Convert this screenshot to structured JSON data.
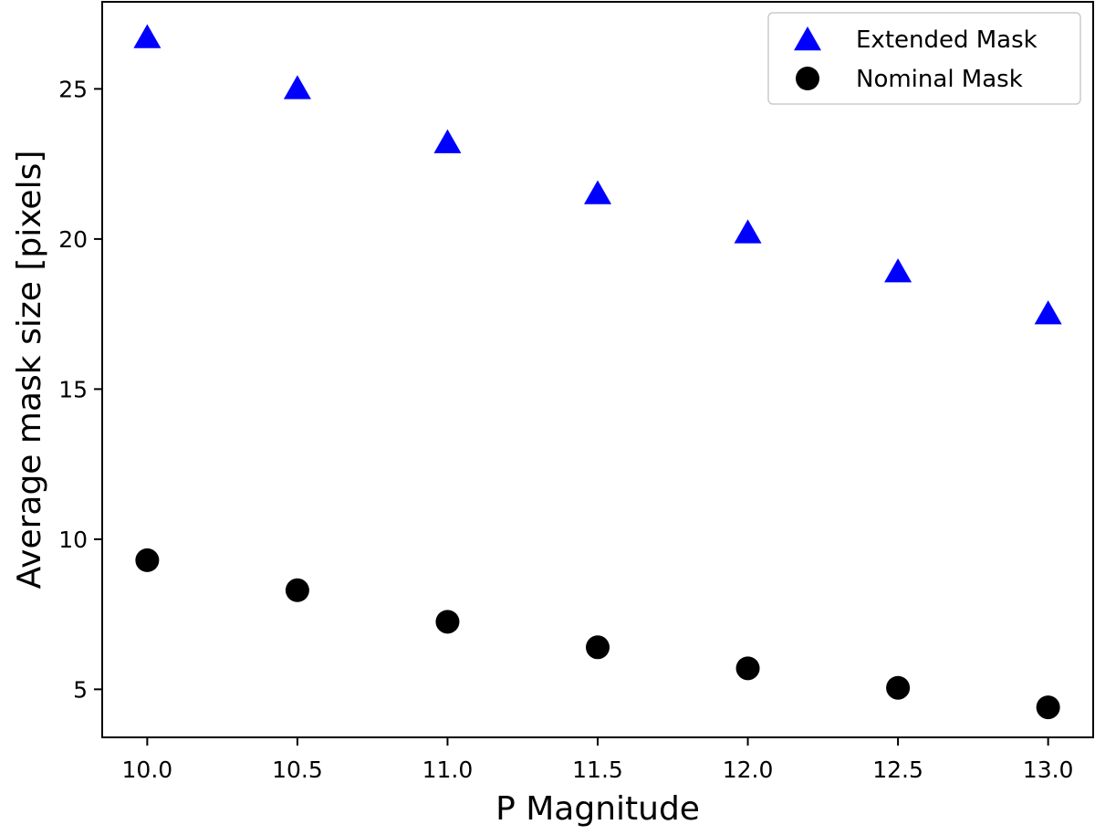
{
  "chart_data": {
    "type": "scatter",
    "title": "",
    "xlabel": "P Magnitude",
    "ylabel": "Average mask size [pixels]",
    "xlim": [
      9.85,
      13.15
    ],
    "ylim": [
      3.4,
      27.9
    ],
    "xticks": [
      10.0,
      10.5,
      11.0,
      11.5,
      12.0,
      12.5,
      13.0
    ],
    "xtick_labels": [
      "10.0",
      "10.5",
      "11.0",
      "11.5",
      "12.0",
      "12.5",
      "13.0"
    ],
    "yticks": [
      5,
      10,
      15,
      20,
      25
    ],
    "ytick_labels": [
      "5",
      "10",
      "15",
      "20",
      "25"
    ],
    "grid": false,
    "legend_position": "top-right",
    "series": [
      {
        "name": "Extended Mask",
        "marker": "triangle",
        "color": "#0000ff",
        "x": [
          10.0,
          10.5,
          11.0,
          11.5,
          12.0,
          12.5,
          13.0
        ],
        "y": [
          26.7,
          25.0,
          23.2,
          21.5,
          20.2,
          18.9,
          17.5
        ]
      },
      {
        "name": "Nominal Mask",
        "marker": "circle",
        "color": "#000000",
        "x": [
          10.0,
          10.5,
          11.0,
          11.5,
          12.0,
          12.5,
          13.0
        ],
        "y": [
          9.3,
          8.3,
          7.25,
          6.4,
          5.7,
          5.05,
          4.4
        ]
      }
    ]
  }
}
